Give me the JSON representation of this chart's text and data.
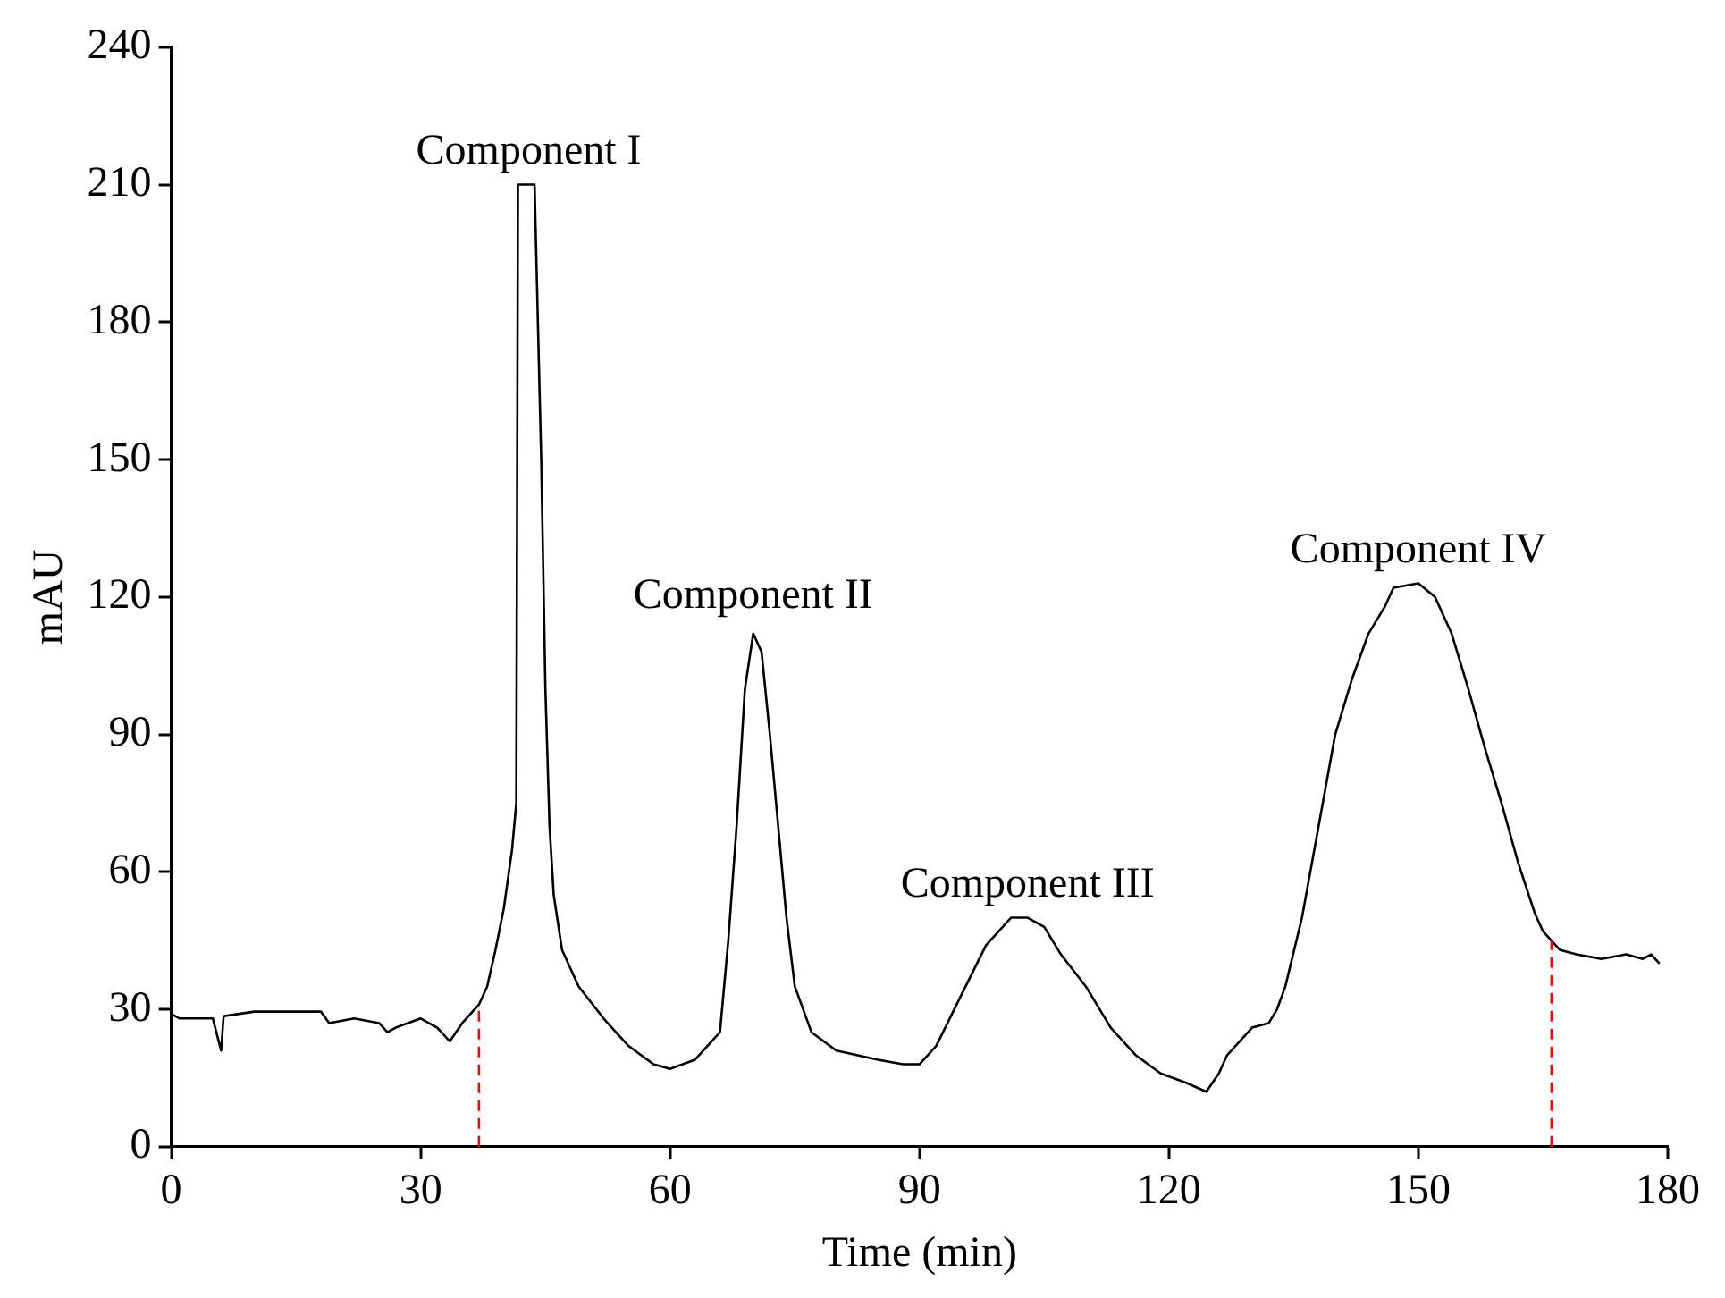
{
  "chart_data": {
    "type": "line",
    "xlabel": "Time (min)",
    "ylabel": "mAU",
    "xlim": [
      0,
      180
    ],
    "xticks": [
      0,
      30,
      60,
      90,
      120,
      150,
      180
    ],
    "ylim": [
      0,
      240
    ],
    "yticks": [
      0,
      30,
      60,
      90,
      120,
      150,
      180,
      210,
      240
    ],
    "grid": false,
    "legend": false,
    "marker": "none",
    "line_style": "solid",
    "series": [
      {
        "color": "#000000",
        "x": [
          0,
          1,
          5,
          6,
          6.3,
          10,
          18,
          19,
          22,
          25,
          26,
          27,
          30,
          32,
          33.5,
          35,
          37,
          38,
          39,
          40,
          41,
          41.5,
          41.7,
          43.7,
          44.5,
          45,
          45.5,
          46,
          47,
          49,
          52,
          55,
          58,
          60,
          63,
          66,
          67,
          68,
          69,
          70,
          71,
          72,
          73,
          74,
          75,
          77,
          80,
          85,
          88,
          90,
          92,
          95,
          98,
          101,
          103,
          105,
          107,
          110,
          113,
          116,
          119,
          122,
          124.5,
          126,
          127,
          130,
          132,
          133,
          134,
          136,
          137.5,
          139,
          140,
          142,
          144,
          146,
          147,
          150,
          152,
          154,
          156,
          158,
          160,
          162,
          164,
          165,
          166,
          167,
          169,
          172,
          175,
          177,
          178,
          179
        ],
        "values": [
          29,
          28,
          28,
          21,
          28.5,
          29.5,
          29.5,
          27,
          28,
          27,
          25,
          26,
          28,
          26,
          23,
          27,
          31,
          35,
          43,
          52,
          65,
          75,
          210,
          210,
          150,
          100,
          70,
          55,
          43,
          35,
          28,
          22,
          18,
          17,
          19,
          25,
          45,
          70,
          100,
          112,
          108,
          90,
          70,
          50,
          35,
          25,
          21,
          19,
          18,
          18,
          22,
          33,
          44,
          50,
          50,
          48,
          42,
          35,
          26,
          20,
          16,
          14,
          12,
          16,
          20,
          26,
          27,
          30,
          35,
          50,
          65,
          80,
          90,
          102,
          112,
          118,
          122,
          123,
          120,
          112,
          100,
          87,
          75,
          62,
          51,
          47,
          45,
          43,
          42,
          41,
          42,
          41,
          42,
          40
        ]
      }
    ],
    "ref_lines": [
      {
        "axis": "x",
        "value": 37,
        "color": "#ff0000",
        "line_style": "dashed"
      },
      {
        "axis": "x",
        "value": 166,
        "color": "#ff0000",
        "line_style": "dashed"
      }
    ],
    "annotations": [
      {
        "text": "Component I",
        "x": 43,
        "y": 210
      },
      {
        "text": "Component II",
        "x": 70,
        "y": 113
      },
      {
        "text": "Component III",
        "x": 103,
        "y": 50
      },
      {
        "text": "Component IV",
        "x": 150,
        "y": 123
      }
    ]
  }
}
